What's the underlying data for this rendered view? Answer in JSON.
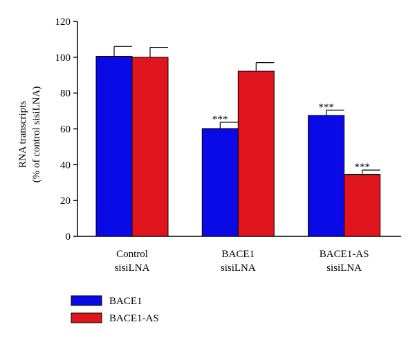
{
  "chart_data": {
    "type": "bar",
    "title": "",
    "ylabel_lines": [
      "RNA transcripts",
      "(% of control sisiLNA)"
    ],
    "xlabel": "",
    "ylim": [
      0,
      120
    ],
    "yticks": [
      0,
      20,
      40,
      60,
      80,
      100,
      120
    ],
    "categories": [
      {
        "lines": [
          "Control",
          "sisiLNA"
        ]
      },
      {
        "lines": [
          "BACE1",
          "sisiLNA"
        ]
      },
      {
        "lines": [
          "BACE1-AS",
          "sisiLNA"
        ]
      }
    ],
    "series": [
      {
        "name": "BACE1",
        "color": "#0a0ae6",
        "values": [
          100.5,
          60.2,
          67.5
        ],
        "errors": [
          5.5,
          3.5,
          3.0
        ],
        "annotations": [
          "",
          "***",
          "***"
        ]
      },
      {
        "name": "BACE1-AS",
        "color": "#e0141c",
        "values": [
          100.0,
          92.2,
          34.5
        ],
        "errors": [
          5.5,
          4.8,
          2.5
        ],
        "annotations": [
          "",
          "",
          "***"
        ]
      }
    ],
    "legend_position": "bottom-left",
    "grid": false
  }
}
